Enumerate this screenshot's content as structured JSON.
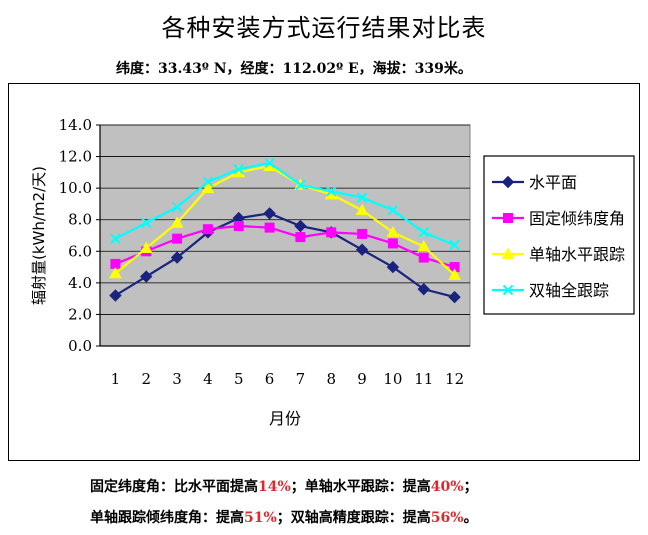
{
  "title": "各种安装方式运行结果对比表",
  "location": "纬度：33.43º N，经度：112.02º E，海拔：339米。",
  "notes": [
    [
      {
        "text": "固定纬度角：比水平面提高",
        "hl": false
      },
      {
        "text": "14%",
        "hl": true
      },
      {
        "text": "；单轴水平跟踪：提高",
        "hl": false
      },
      {
        "text": "40%",
        "hl": true
      },
      {
        "text": "；",
        "hl": false
      }
    ],
    [
      {
        "text": "单轴跟踪倾纬度角：提高",
        "hl": false
      },
      {
        "text": "51%",
        "hl": true
      },
      {
        "text": "；双轴高精度跟踪：提高",
        "hl": false
      },
      {
        "text": "56%",
        "hl": true
      },
      {
        "text": "。",
        "hl": false
      }
    ]
  ],
  "chart_data": {
    "type": "line",
    "xlabel": "月份",
    "ylabel": "辐射量(kWh/m2/天)",
    "x": [
      1,
      2,
      3,
      4,
      5,
      6,
      7,
      8,
      9,
      10,
      11,
      12
    ],
    "ylim": [
      0,
      14
    ],
    "yticks": [
      "0.0",
      "2.0",
      "4.0",
      "6.0",
      "8.0",
      "10.0",
      "12.0",
      "14.0"
    ],
    "grid": true,
    "plot_background": "#c0c0c0",
    "legend_position": "right",
    "series": [
      {
        "name": "水平面",
        "color": "#1a237e",
        "marker": "diamond",
        "values": [
          3.2,
          4.4,
          5.6,
          7.2,
          8.1,
          8.4,
          7.6,
          7.2,
          6.1,
          5.0,
          3.6,
          3.1
        ]
      },
      {
        "name": "固定倾纬度角",
        "color": "#ff00ff",
        "marker": "square",
        "values": [
          5.2,
          6.0,
          6.8,
          7.4,
          7.6,
          7.5,
          6.9,
          7.2,
          7.1,
          6.5,
          5.6,
          5.0
        ]
      },
      {
        "name": "单轴水平跟踪",
        "color": "#ffff00",
        "marker": "triangle",
        "values": [
          4.6,
          6.2,
          7.8,
          10.0,
          11.0,
          11.4,
          10.2,
          9.6,
          8.6,
          7.2,
          6.3,
          4.5
        ]
      },
      {
        "name": "双轴全跟踪",
        "color": "#00ffff",
        "marker": "x",
        "values": [
          6.8,
          7.8,
          8.8,
          10.4,
          11.2,
          11.6,
          10.2,
          9.8,
          9.4,
          8.6,
          7.2,
          6.4
        ]
      }
    ]
  }
}
